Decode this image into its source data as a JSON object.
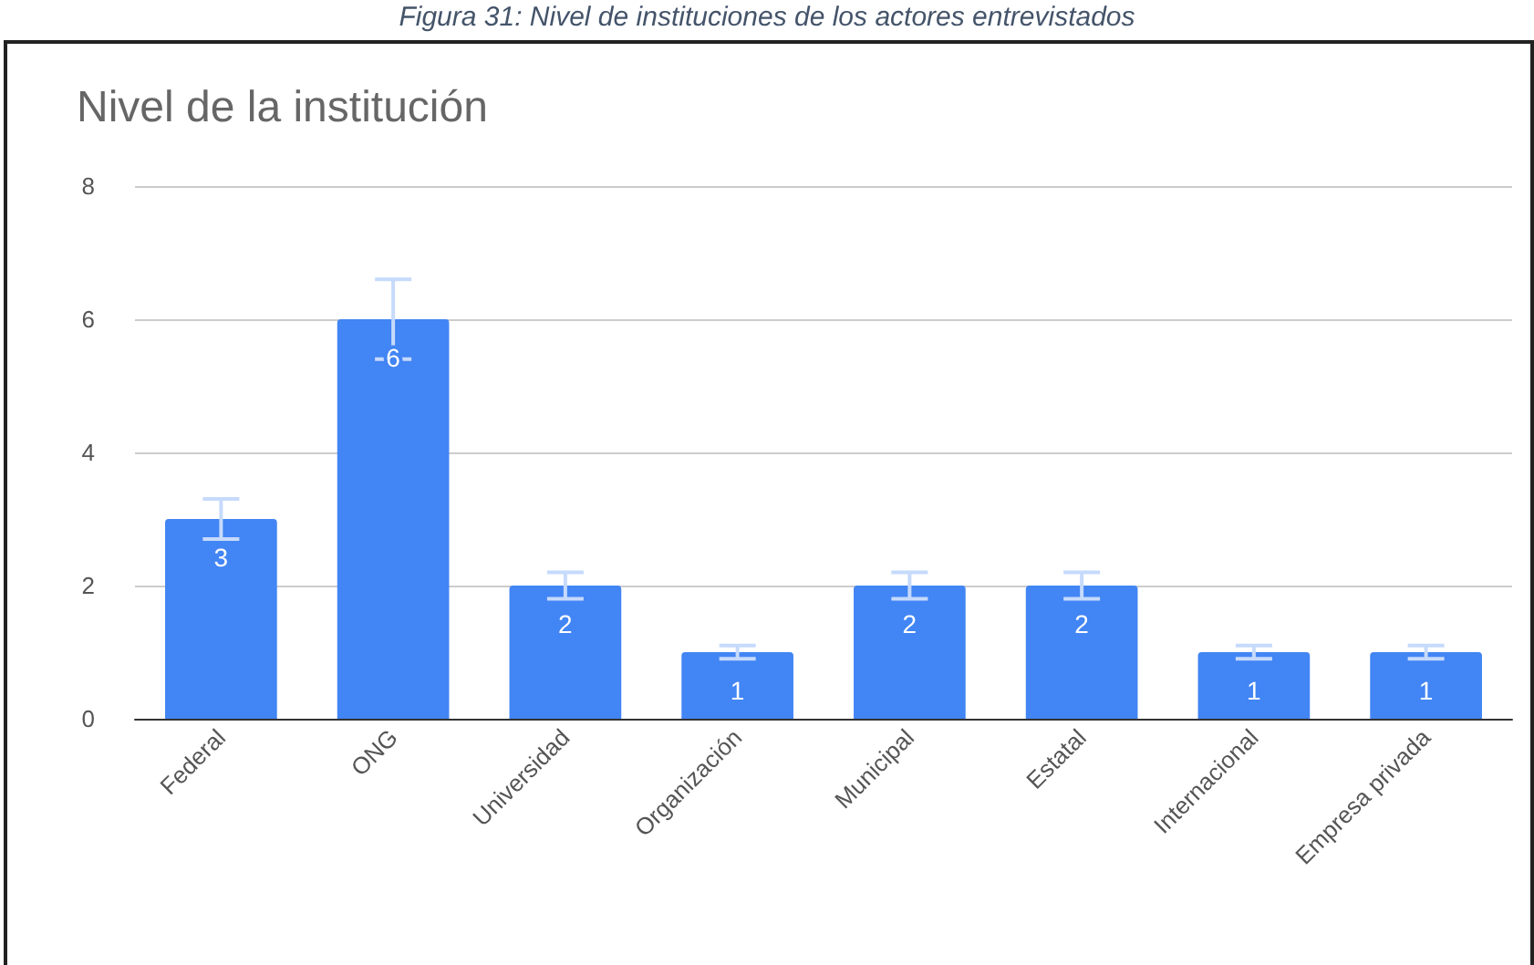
{
  "chart_data": {
    "type": "bar",
    "title": "Nivel de la institución",
    "annotations": [
      "Figura 31: Nivel de instituciones de los actores entrevistados"
    ],
    "categories": [
      "Federal",
      "ONG",
      "Universidad",
      "Organización",
      "Municipal",
      "Estatal",
      "Internacional",
      "Empresa privada"
    ],
    "values": [
      3,
      6,
      2,
      1,
      2,
      2,
      1,
      1
    ],
    "errors": [
      0.3,
      0.6,
      0.2,
      0.1,
      0.2,
      0.2,
      0.1,
      0.1
    ],
    "color": "#4285f4",
    "ylim": [
      0,
      8
    ],
    "yticks": [
      0,
      2,
      4,
      6,
      8
    ],
    "grid": "y",
    "data_labels": true
  }
}
